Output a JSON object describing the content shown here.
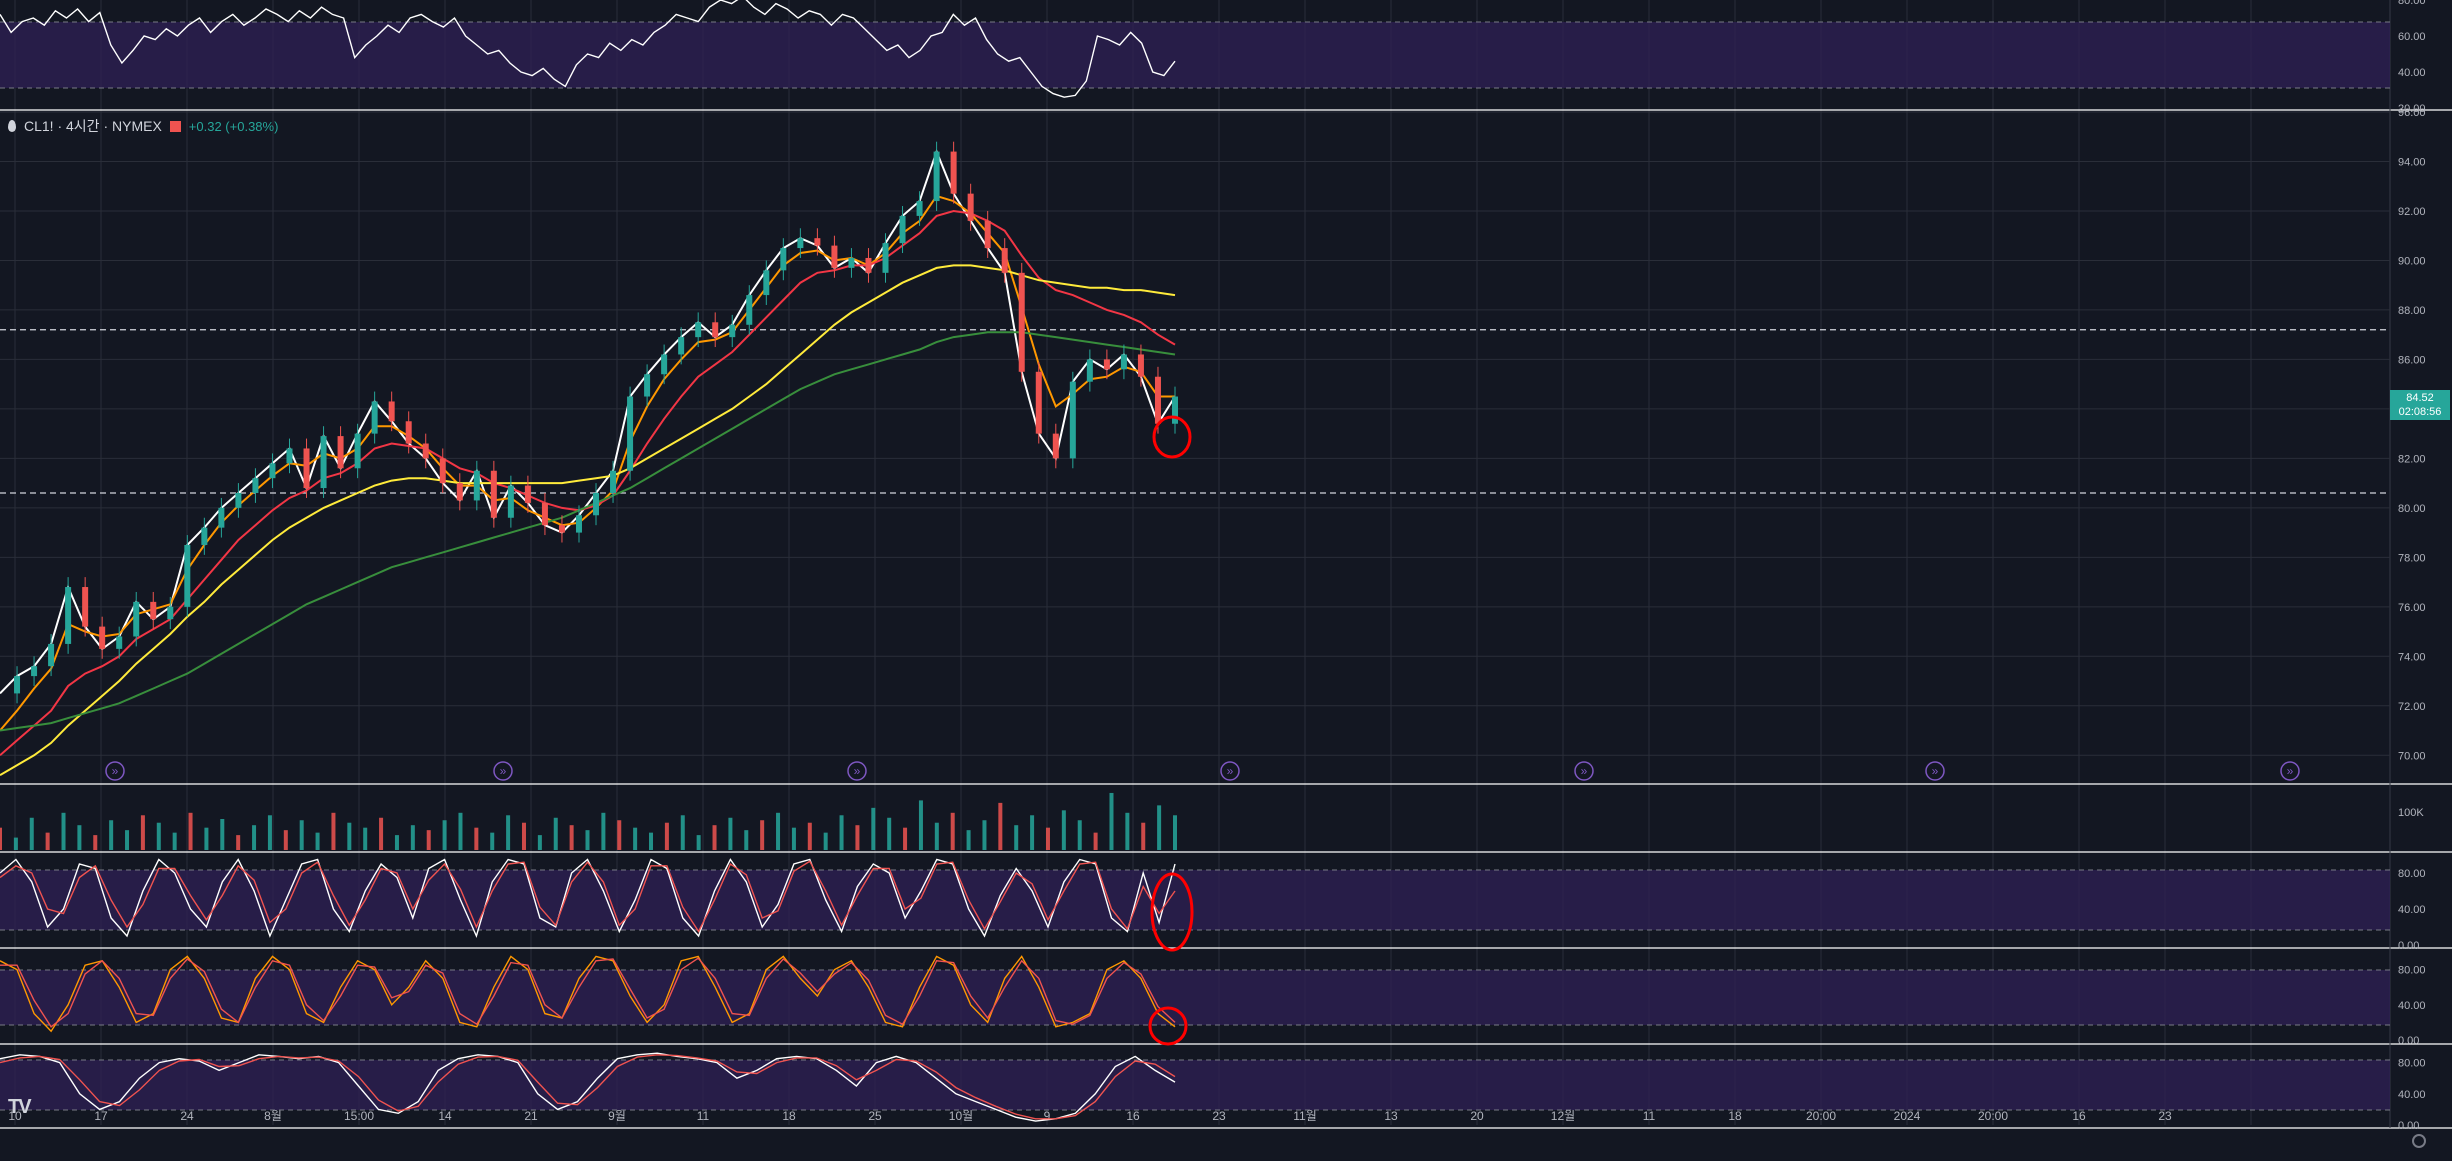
{
  "symbol": {
    "name": "CL1! · 4시간 · NYMEX",
    "change": "+0.32 (+0.38%)"
  },
  "price_tag": {
    "price": "84.52",
    "countdown": "02:08:56"
  },
  "volume_label": "100K",
  "colors": {
    "background": "#131722",
    "grid": "#2a2e39",
    "panel_band": "#2d1f52",
    "up_candle": "#26a69a",
    "down_candle": "#ef5350",
    "ma_short": "#ff9800",
    "ma_mid": "#f23645",
    "ma_long": "#ffeb3b",
    "ma_longest": "#388e3c",
    "annotation": "#ff0000"
  },
  "icons": [
    "tradingview-logo-icon",
    "settings-icon",
    "news-flag-icon",
    "fast-forward-event-icon"
  ],
  "chart_data": [
    {
      "type": "line",
      "panel": "top-oscillator",
      "y_ticks": [
        "80.00",
        "60.00",
        "40.00",
        "20.00"
      ],
      "ylim": [
        20,
        80
      ],
      "bands": [
        30,
        70
      ],
      "series": [
        {
          "color": "#ffffff",
          "values": [
            72,
            62,
            68,
            70,
            66,
            74,
            70,
            75,
            68,
            73,
            55,
            45,
            52,
            60,
            58,
            64,
            60,
            66,
            70,
            62,
            68,
            72,
            66,
            70,
            75,
            72,
            68,
            74,
            70,
            76,
            72,
            70,
            48,
            55,
            60,
            66,
            62,
            70,
            72,
            68,
            65,
            70,
            60,
            55,
            50,
            52,
            45,
            40,
            38,
            42,
            36,
            32,
            44,
            50,
            48,
            56,
            52,
            58,
            55,
            62,
            66,
            72,
            70,
            68,
            76,
            80,
            78,
            82,
            76,
            72,
            78,
            75,
            70,
            74,
            72,
            66,
            72,
            70,
            64,
            58,
            52,
            55,
            48,
            52,
            60,
            62,
            72,
            66,
            70,
            58,
            50,
            46,
            48,
            40,
            32,
            28,
            26,
            27,
            35,
            60,
            58,
            55,
            62,
            56,
            40,
            38,
            46
          ]
        }
      ]
    },
    {
      "type": "line",
      "panel": "main-price",
      "x_tick_labels": [
        "10",
        "17",
        "24",
        "8월",
        "15:00",
        "14",
        "21",
        "9월",
        "11",
        "18",
        "25",
        "10월",
        "9",
        "16",
        "23",
        "11월",
        "13",
        "20",
        "12월",
        "11",
        "18",
        "20:00",
        "2024",
        "20:00",
        "16",
        "23"
      ],
      "y_ticks": [
        "96.00",
        "94.00",
        "92.00",
        "90.00",
        "88.00",
        "86.00",
        "84.00",
        "82.00",
        "80.00",
        "78.00",
        "76.00",
        "74.00",
        "72.00",
        "70.00"
      ],
      "ylim": [
        69,
        96
      ],
      "horizontal_levels": [
        87.2,
        80.6
      ],
      "series": [
        {
          "name": "",
          "color": "#ffffff",
          "values": [
            72.5,
            73.2,
            73.6,
            74.5,
            76.8,
            75.2,
            74.3,
            74.8,
            76.2,
            75.5,
            76.0,
            78.5,
            79.2,
            80.0,
            80.6,
            81.2,
            81.8,
            82.4,
            80.8,
            82.9,
            81.6,
            83.0,
            84.3,
            83.5,
            82.6,
            82.0,
            81.0,
            80.3,
            81.5,
            79.6,
            80.9,
            80.2,
            79.3,
            79.0,
            79.7,
            80.6,
            81.5,
            84.5,
            85.4,
            86.2,
            86.9,
            87.5,
            86.9,
            87.4,
            88.6,
            89.6,
            90.5,
            90.9,
            90.6,
            89.7,
            90.1,
            89.5,
            90.7,
            91.8,
            92.4,
            94.4,
            92.7,
            91.6,
            90.5,
            89.5,
            85.5,
            83.0,
            82.0,
            85.1,
            86.0,
            85.6,
            86.2,
            85.3,
            83.4,
            84.5
          ]
        },
        {
          "name": "",
          "color": "#ff9800",
          "values": [
            71.0,
            71.8,
            72.7,
            73.5,
            75.3,
            75.0,
            74.8,
            74.9,
            75.7,
            75.9,
            76.1,
            77.5,
            78.5,
            79.4,
            80.1,
            80.7,
            81.3,
            81.8,
            81.7,
            82.2,
            82.0,
            82.4,
            83.3,
            83.3,
            82.9,
            82.4,
            81.6,
            80.9,
            80.9,
            80.3,
            80.4,
            79.9,
            79.6,
            79.3,
            79.4,
            80.0,
            80.7,
            82.7,
            84.1,
            85.2,
            86.0,
            86.7,
            86.8,
            87.1,
            88.0,
            88.9,
            89.8,
            90.3,
            90.4,
            90.0,
            90.1,
            89.8,
            90.3,
            91.1,
            91.6,
            92.6,
            92.4,
            91.9,
            91.1,
            90.3,
            88.1,
            85.8,
            84.1,
            84.6,
            85.2,
            85.3,
            85.7,
            85.5,
            84.5,
            84.5
          ]
        },
        {
          "name": "",
          "color": "#f23645",
          "values": [
            70.0,
            70.6,
            71.2,
            71.8,
            72.8,
            73.3,
            73.6,
            74.0,
            74.7,
            75.1,
            75.5,
            76.3,
            77.1,
            77.9,
            78.7,
            79.3,
            79.9,
            80.4,
            80.7,
            81.2,
            81.4,
            81.8,
            82.4,
            82.6,
            82.5,
            82.4,
            82.0,
            81.6,
            81.4,
            81.0,
            80.8,
            80.5,
            80.2,
            80.0,
            79.9,
            80.1,
            80.5,
            81.5,
            82.6,
            83.6,
            84.5,
            85.3,
            85.8,
            86.3,
            87.0,
            87.7,
            88.4,
            89.1,
            89.5,
            89.6,
            89.8,
            89.8,
            90.1,
            90.6,
            91.1,
            91.8,
            92.0,
            91.9,
            91.6,
            91.2,
            90.2,
            89.3,
            88.8,
            88.6,
            88.3,
            88.0,
            87.8,
            87.5,
            87.0,
            86.6
          ]
        },
        {
          "name": "",
          "color": "#ffeb3b",
          "values": [
            69.2,
            69.6,
            70.0,
            70.5,
            71.2,
            71.8,
            72.4,
            73.0,
            73.7,
            74.3,
            74.9,
            75.6,
            76.2,
            76.9,
            77.5,
            78.1,
            78.7,
            79.2,
            79.6,
            80.0,
            80.3,
            80.6,
            80.9,
            81.1,
            81.2,
            81.2,
            81.1,
            81.0,
            81.0,
            81.0,
            81.0,
            81.0,
            81.0,
            81.0,
            81.1,
            81.2,
            81.3,
            81.6,
            82.0,
            82.4,
            82.8,
            83.2,
            83.6,
            84.0,
            84.5,
            85.0,
            85.6,
            86.2,
            86.8,
            87.4,
            87.9,
            88.3,
            88.7,
            89.1,
            89.4,
            89.7,
            89.8,
            89.8,
            89.7,
            89.6,
            89.4,
            89.2,
            89.1,
            89.0,
            88.9,
            88.9,
            88.8,
            88.8,
            88.7,
            88.6
          ]
        },
        {
          "name": "",
          "color": "#388e3c",
          "values": [
            71.0,
            71.1,
            71.2,
            71.3,
            71.5,
            71.7,
            71.9,
            72.1,
            72.4,
            72.7,
            73.0,
            73.3,
            73.7,
            74.1,
            74.5,
            74.9,
            75.3,
            75.7,
            76.1,
            76.4,
            76.7,
            77.0,
            77.3,
            77.6,
            77.8,
            78.0,
            78.2,
            78.4,
            78.6,
            78.8,
            79.0,
            79.2,
            79.4,
            79.6,
            79.9,
            80.2,
            80.5,
            80.8,
            81.2,
            81.6,
            82.0,
            82.4,
            82.8,
            83.2,
            83.6,
            84.0,
            84.4,
            84.8,
            85.1,
            85.4,
            85.6,
            85.8,
            86.0,
            86.2,
            86.4,
            86.7,
            86.9,
            87.0,
            87.1,
            87.1,
            87.1,
            87.0,
            86.9,
            86.8,
            86.7,
            86.6,
            86.5,
            86.4,
            86.3,
            86.2
          ]
        }
      ]
    },
    {
      "type": "bar",
      "panel": "volume",
      "y_ticks": [
        "100K"
      ],
      "values": [
        18,
        10,
        26,
        14,
        30,
        20,
        12,
        24,
        16,
        28,
        22,
        14,
        30,
        18,
        25,
        12,
        20,
        28,
        16,
        24,
        14,
        30,
        22,
        18,
        26,
        12,
        20,
        16,
        24,
        30,
        18,
        14,
        28,
        22,
        12,
        26,
        20,
        16,
        30,
        24,
        18,
        14,
        22,
        28,
        12,
        20,
        26,
        16,
        24,
        30,
        18,
        22,
        14,
        28,
        20,
        34,
        26,
        18,
        40,
        22,
        30,
        16,
        24,
        38,
        20,
        28,
        18,
        32,
        24,
        14,
        46,
        30,
        22,
        36,
        28
      ]
    },
    {
      "type": "line",
      "panel": "stochastic-rsi-1",
      "y_ticks": [
        "80.00",
        "40.00",
        "0.00"
      ],
      "ylim": [
        0,
        100
      ],
      "bands": [
        20,
        80
      ],
      "series": [
        {
          "color": "#ffffff",
          "values": [
            80,
            95,
            70,
            20,
            40,
            90,
            85,
            30,
            10,
            60,
            95,
            80,
            40,
            20,
            70,
            95,
            60,
            10,
            50,
            90,
            95,
            40,
            15,
            60,
            90,
            75,
            30,
            85,
            95,
            50,
            10,
            70,
            95,
            90,
            30,
            20,
            80,
            95,
            60,
            15,
            50,
            95,
            85,
            30,
            10,
            60,
            95,
            70,
            20,
            45,
            90,
            95,
            50,
            15,
            65,
            90,
            80,
            30,
            60,
            95,
            90,
            40,
            10,
            55,
            85,
            60,
            20,
            70,
            95,
            90,
            30,
            15,
            80,
            25,
            90
          ]
        },
        {
          "color": "#ef5350",
          "values": [
            75,
            88,
            80,
            40,
            35,
            75,
            88,
            50,
            20,
            45,
            85,
            85,
            55,
            28,
            55,
            88,
            72,
            25,
            40,
            80,
            92,
            55,
            22,
            50,
            85,
            80,
            40,
            72,
            90,
            62,
            20,
            60,
            90,
            92,
            42,
            22,
            70,
            92,
            70,
            22,
            40,
            88,
            88,
            42,
            15,
            50,
            90,
            78,
            30,
            38,
            82,
            93,
            60,
            22,
            55,
            85,
            85,
            40,
            52,
            90,
            92,
            50,
            18,
            48,
            80,
            68,
            28,
            60,
            90,
            92,
            40,
            18,
            65,
            35,
            60
          ]
        }
      ]
    },
    {
      "type": "line",
      "panel": "stochastic-rsi-2",
      "y_ticks": [
        "80.00",
        "40.00",
        "0.00"
      ],
      "ylim": [
        0,
        100
      ],
      "bands": [
        20,
        80
      ],
      "series": [
        {
          "color": "#ff9800",
          "values": [
            90,
            80,
            30,
            10,
            40,
            85,
            90,
            60,
            20,
            30,
            80,
            95,
            70,
            25,
            20,
            70,
            95,
            80,
            30,
            20,
            60,
            90,
            80,
            40,
            60,
            90,
            70,
            20,
            15,
            60,
            95,
            80,
            30,
            25,
            70,
            95,
            90,
            50,
            20,
            40,
            90,
            95,
            60,
            20,
            30,
            80,
            95,
            70,
            50,
            80,
            90,
            60,
            20,
            15,
            60,
            95,
            85,
            40,
            20,
            70,
            95,
            60,
            15,
            20,
            30,
            80,
            90,
            70,
            30,
            15
          ]
        },
        {
          "color": "#ef5350",
          "values": [
            85,
            85,
            45,
            15,
            30,
            75,
            90,
            70,
            30,
            28,
            70,
            92,
            78,
            35,
            20,
            60,
            90,
            85,
            40,
            22,
            50,
            85,
            83,
            48,
            55,
            85,
            76,
            30,
            18,
            50,
            88,
            85,
            40,
            25,
            60,
            90,
            92,
            58,
            25,
            35,
            80,
            93,
            70,
            30,
            28,
            70,
            92,
            76,
            55,
            75,
            88,
            68,
            28,
            18,
            50,
            90,
            88,
            50,
            25,
            60,
            90,
            70,
            22,
            18,
            28,
            70,
            88,
            75,
            38,
            20
          ]
        }
      ]
    },
    {
      "type": "line",
      "panel": "stochastic-rsi-3",
      "y_ticks": [
        "80.00",
        "40.00",
        "0.00"
      ],
      "ylim": [
        0,
        100
      ],
      "bands": [
        20,
        80
      ],
      "series": [
        {
          "color": "#ffffff",
          "values": [
            85,
            90,
            88,
            80,
            40,
            20,
            30,
            60,
            80,
            85,
            82,
            70,
            80,
            90,
            88,
            85,
            88,
            80,
            50,
            20,
            15,
            30,
            70,
            85,
            90,
            88,
            80,
            40,
            20,
            30,
            60,
            85,
            90,
            92,
            88,
            85,
            80,
            60,
            70,
            85,
            88,
            85,
            70,
            50,
            80,
            88,
            80,
            60,
            40,
            30,
            20,
            10,
            5,
            8,
            15,
            40,
            75,
            88,
            70,
            55
          ]
        },
        {
          "color": "#ef5350",
          "values": [
            80,
            86,
            88,
            84,
            58,
            30,
            25,
            45,
            70,
            82,
            84,
            75,
            76,
            85,
            88,
            86,
            87,
            82,
            62,
            32,
            18,
            24,
            55,
            78,
            87,
            88,
            83,
            55,
            28,
            26,
            48,
            75,
            87,
            90,
            89,
            86,
            82,
            68,
            66,
            80,
            86,
            86,
            76,
            58,
            70,
            84,
            82,
            68,
            48,
            35,
            24,
            14,
            8,
            8,
            12,
            30,
            62,
            82,
            78,
            62
          ]
        }
      ]
    }
  ]
}
